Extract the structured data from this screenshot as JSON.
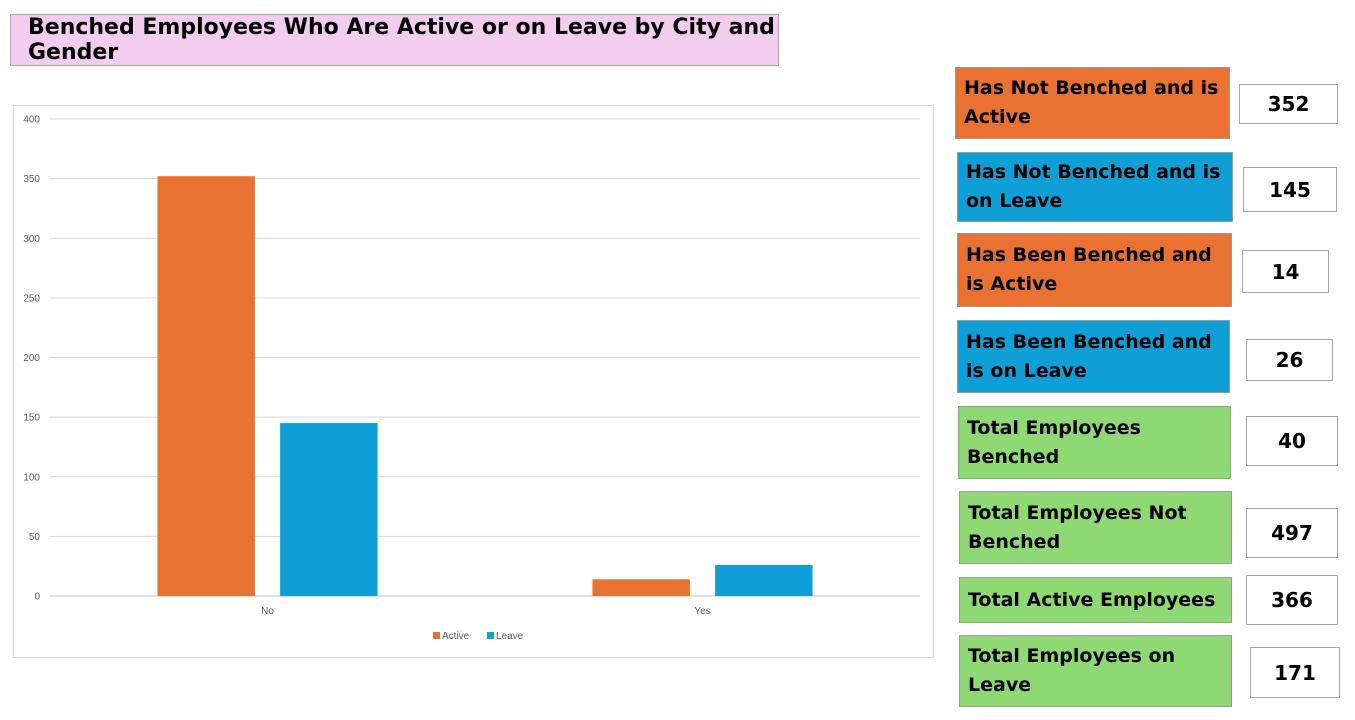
{
  "title": "Benched Employees Who Are Active or on Leave by City and Gender",
  "colors": {
    "active": "#e97132",
    "leave": "#0f9ed5",
    "total": "#8ed973",
    "title_bg": "#f2cdee"
  },
  "chart_data": {
    "type": "bar",
    "categories": [
      "No",
      "Yes"
    ],
    "series": [
      {
        "name": "Active",
        "values": [
          352,
          14
        ]
      },
      {
        "name": "Leave",
        "values": [
          145,
          26
        ]
      }
    ],
    "ylim": [
      0,
      400
    ],
    "yticks": [
      0,
      50,
      100,
      150,
      200,
      250,
      300,
      350,
      400
    ],
    "grid": true,
    "legend_position": "bottom"
  },
  "cards": [
    {
      "label": "Has Not Benched and is Active",
      "value": "352",
      "color": "active"
    },
    {
      "label": "Has Not Benched and is on Leave",
      "value": "145",
      "color": "leave"
    },
    {
      "label": "Has Been Benched and is Active",
      "value": "14",
      "color": "active"
    },
    {
      "label": "Has Been Benched and is on Leave",
      "value": "26",
      "color": "leave"
    },
    {
      "label": "Total Employees Benched",
      "value": "40",
      "color": "total"
    },
    {
      "label": "Total Employees Not Benched",
      "value": "497",
      "color": "total"
    },
    {
      "label": "Total Active Employees",
      "value": "366",
      "color": "total"
    },
    {
      "label": "Total Employees on Leave",
      "value": "171",
      "color": "total"
    }
  ]
}
